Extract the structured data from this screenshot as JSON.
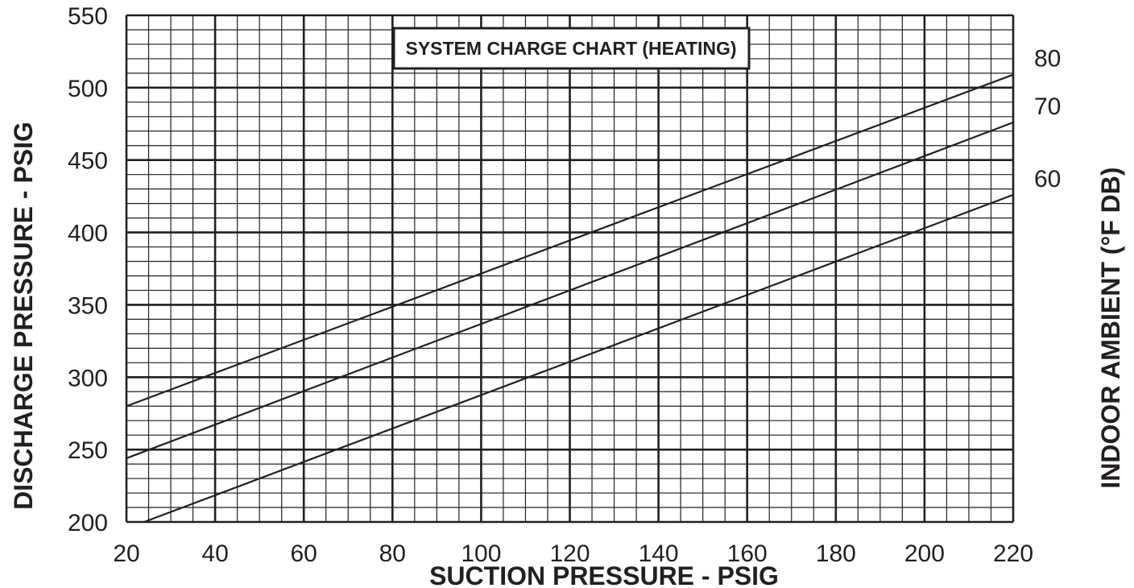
{
  "chart_data": {
    "type": "line",
    "title": "SYSTEM CHARGE CHART (HEATING)",
    "xlabel": "SUCTION PRESSURE - PSIG",
    "ylabel": "DISCHARGE PRESSURE - PSIG",
    "y2label": "INDOOR AMBIENT (°F DB)",
    "xlim": [
      20,
      220
    ],
    "ylim": [
      200,
      550
    ],
    "x_ticks": [
      20,
      40,
      60,
      80,
      100,
      120,
      140,
      160,
      180,
      200,
      220
    ],
    "y_ticks": [
      200,
      250,
      300,
      350,
      400,
      450,
      500,
      550
    ],
    "minor_x_step": 5,
    "minor_y_step": 10,
    "grid": true,
    "series": [
      {
        "name": "80",
        "x": [
          20,
          220
        ],
        "y": [
          280,
          509
        ]
      },
      {
        "name": "70",
        "x": [
          20,
          220
        ],
        "y": [
          244,
          476
        ]
      },
      {
        "name": "60",
        "x": [
          24,
          220
        ],
        "y": [
          200,
          426
        ]
      }
    ],
    "colors": {
      "ink": "#231f20",
      "background": "#ffffff"
    }
  }
}
